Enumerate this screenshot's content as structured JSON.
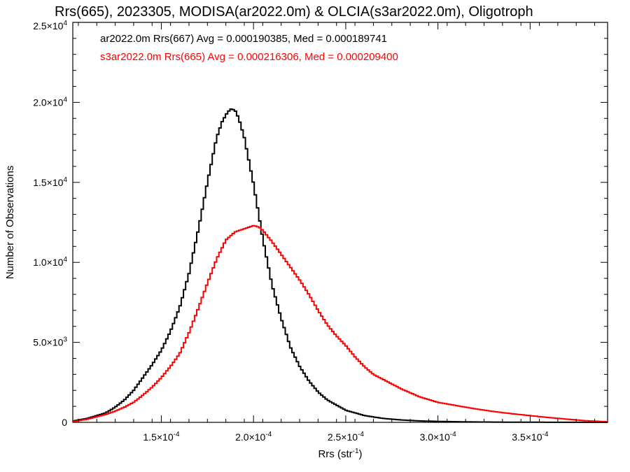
{
  "chart_data": {
    "type": "line",
    "drawstyle": "steps",
    "title": "Rrs(665), 2023305, MODISA(ar2022.0m) & OLCIA(s3ar2022.0m), Oligotroph",
    "xlabel": "Rrs (str",
    "xlabel_sup": "-1",
    "xlabel_end": ")",
    "ylabel": "Number of Observations",
    "xlim": [
      0.000102,
      0.000392
    ],
    "ylim": [
      0,
      25000
    ],
    "grid": false,
    "legend_position": "top-left",
    "x_ticks": [
      {
        "value": 0.00015,
        "mant": "1.5×10",
        "exp": "-4"
      },
      {
        "value": 0.0002,
        "mant": "2.0×10",
        "exp": "-4"
      },
      {
        "value": 0.00025,
        "mant": "2.5×10",
        "exp": "-4"
      },
      {
        "value": 0.0003,
        "mant": "3.0×10",
        "exp": "-4"
      },
      {
        "value": 0.00035,
        "mant": "3.5×10",
        "exp": "-4"
      }
    ],
    "y_ticks": [
      {
        "value": 0,
        "mant": "0",
        "exp": ""
      },
      {
        "value": 5000,
        "mant": "5.0×10",
        "exp": "3"
      },
      {
        "value": 10000,
        "mant": "1.0×10",
        "exp": "4"
      },
      {
        "value": 15000,
        "mant": "1.5×10",
        "exp": "4"
      },
      {
        "value": 20000,
        "mant": "2.0×10",
        "exp": "4"
      },
      {
        "value": 25000,
        "mant": "2.5×10",
        "exp": "4"
      }
    ],
    "series": [
      {
        "name": "ar2022.0m Rrs(667) Avg = 0.000190385, Med = 0.000189741",
        "color": "#000000",
        "x": [
          0.000102,
          0.00011,
          0.00012,
          0.000125,
          0.00013,
          0.000135,
          0.00014,
          0.000145,
          0.00015,
          0.000155,
          0.00016,
          0.000165,
          0.00017,
          0.000175,
          0.00018,
          0.000183,
          0.000186,
          0.000188,
          0.00019,
          0.000192,
          0.000195,
          0.0002,
          0.000205,
          0.00021,
          0.000215,
          0.00022,
          0.000225,
          0.00023,
          0.000235,
          0.00024,
          0.00025,
          0.00026,
          0.00027,
          0.00028,
          0.00029,
          0.0003,
          0.00031,
          0.00032,
          0.00034,
          0.00036,
          0.000392
        ],
        "y": [
          80,
          250,
          600,
          950,
          1400,
          2000,
          2800,
          3600,
          4500,
          5700,
          7200,
          9300,
          12000,
          15000,
          17800,
          18800,
          19400,
          19600,
          19500,
          19000,
          17800,
          14900,
          11500,
          8600,
          6500,
          4700,
          3500,
          2600,
          1900,
          1400,
          760,
          430,
          250,
          150,
          90,
          60,
          40,
          25,
          12,
          6,
          0
        ]
      },
      {
        "name": "s3ar2022.0m Rrs(665) Avg = 0.000216306, Med = 0.000209400",
        "color": "#ff0000",
        "x": [
          0.000102,
          0.00011,
          0.00012,
          0.000125,
          0.00013,
          0.000135,
          0.00014,
          0.000145,
          0.00015,
          0.000155,
          0.00016,
          0.000165,
          0.00017,
          0.000175,
          0.00018,
          0.000185,
          0.00019,
          0.000195,
          0.0002,
          0.000203,
          0.000205,
          0.00021,
          0.000215,
          0.00022,
          0.000225,
          0.00023,
          0.000235,
          0.00024,
          0.000245,
          0.00025,
          0.000255,
          0.00026,
          0.000265,
          0.00027,
          0.00028,
          0.00029,
          0.0003,
          0.00031,
          0.00032,
          0.00033,
          0.00034,
          0.00035,
          0.00036,
          0.00037,
          0.00038,
          0.000392
        ],
        "y": [
          50,
          200,
          500,
          700,
          950,
          1250,
          1700,
          2200,
          2800,
          3500,
          4300,
          5600,
          7100,
          8700,
          10200,
          11400,
          11900,
          12100,
          12300,
          12200,
          12000,
          11300,
          10500,
          9700,
          8900,
          8000,
          7000,
          6100,
          5400,
          4800,
          4100,
          3500,
          3000,
          2700,
          2100,
          1600,
          1250,
          1050,
          850,
          680,
          540,
          420,
          300,
          200,
          100,
          40
        ]
      }
    ]
  }
}
